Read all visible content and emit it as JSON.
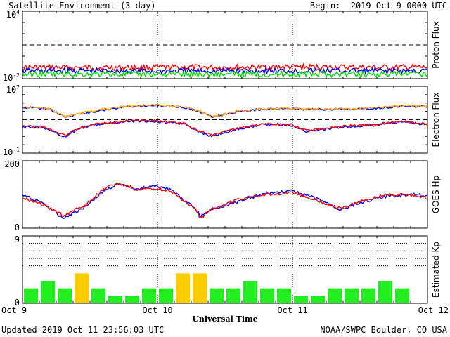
{
  "header": {
    "title": "Satellite Environment (3 day)",
    "begin": "Begin:  2019 Oct 9 0000 UTC"
  },
  "footer": {
    "updated": "Updated 2019 Oct 11 23:56:03 UTC",
    "credit": "NOAA/SWPC Boulder, CO USA"
  },
  "x_axis": {
    "label": "Universal Time",
    "ticks": [
      "Oct 9",
      "Oct 10",
      "Oct 11",
      "Oct 12"
    ]
  },
  "colors": {
    "red": "#ff0000",
    "blue": "#0000ff",
    "green": "#00dd00",
    "orange": "#ffa500",
    "kp_green": "#22ee22",
    "kp_yellow": "#ffcc00"
  },
  "chart_data": [
    {
      "type": "line",
      "title": "Proton Flux",
      "ylabel": "Proton Flux",
      "yscale": "log",
      "ylim": [
        0.01,
        10000
      ],
      "ytick_labels": [
        "10^4",
        "10^-2"
      ],
      "threshold": 10,
      "x_unit": "days since Oct 9 0000 UTC",
      "series": [
        {
          "color": "red",
          "x": [
            0,
            0.5,
            1,
            1.5,
            2,
            2.5,
            3
          ],
          "y": [
            0.1,
            0.095,
            0.1,
            0.1,
            0.11,
            0.1,
            0.1
          ]
        },
        {
          "color": "blue",
          "x": [
            0,
            0.5,
            1,
            1.5,
            2,
            2.5,
            3
          ],
          "y": [
            0.05,
            0.05,
            0.048,
            0.05,
            0.05,
            0.05,
            0.05
          ]
        },
        {
          "color": "green",
          "x": [
            0,
            0.5,
            1,
            1.5,
            2,
            2.5,
            3
          ],
          "y": [
            0.025,
            0.025,
            0.025,
            0.025,
            0.025,
            0.025,
            0.025
          ]
        }
      ]
    },
    {
      "type": "line",
      "title": "Electron Flux",
      "ylabel": "Electron Flux",
      "yscale": "log",
      "ylim": [
        0.1,
        10000000
      ],
      "ytick_labels": [
        "10^7",
        "10^-1"
      ],
      "threshold": 1000,
      "x_unit": "days since Oct 9 0000 UTC",
      "series": [
        {
          "color": "blue",
          "x": [
            0,
            0.2,
            0.32,
            0.4,
            0.6,
            0.8,
            1.0,
            1.2,
            1.35,
            1.4,
            1.6,
            1.8,
            2.0,
            2.2,
            2.4,
            2.6,
            2.8,
            3.0
          ],
          "y": [
            30000,
            20000,
            1800,
            4000,
            15000,
            40000,
            50000,
            30000,
            6000,
            2000,
            9000,
            20000,
            20000,
            17000,
            18000,
            23000,
            40000,
            40000
          ]
        },
        {
          "color": "orange",
          "x": [
            0,
            0.2,
            0.32,
            0.4,
            0.6,
            0.8,
            1.0,
            1.2,
            1.35,
            1.4,
            1.6,
            1.8,
            2.0,
            2.2,
            2.4,
            2.6,
            2.8,
            3.0
          ],
          "y": [
            35000,
            22000,
            2200,
            5000,
            18000,
            45000,
            55000,
            33000,
            7000,
            2200,
            10000,
            22000,
            22000,
            19000,
            20000,
            25000,
            45000,
            45000
          ]
        },
        {
          "color": "blue",
          "x": [
            0,
            0.15,
            0.32,
            0.36,
            0.5,
            0.8,
            1.0,
            1.2,
            1.3,
            1.4,
            1.6,
            1.8,
            2.0,
            2.1,
            2.4,
            2.6,
            2.8,
            3.0
          ],
          "y": [
            150,
            120,
            8,
            30,
            200,
            700,
            600,
            300,
            40,
            10,
            80,
            300,
            200,
            40,
            150,
            200,
            600,
            250
          ]
        },
        {
          "color": "red",
          "x": [
            0,
            0.15,
            0.32,
            0.36,
            0.5,
            0.8,
            1.0,
            1.2,
            1.3,
            1.4,
            1.6,
            1.8,
            2.0,
            2.1,
            2.4,
            2.6,
            2.8,
            3.0
          ],
          "y": [
            200,
            150,
            12,
            40,
            250,
            800,
            700,
            350,
            50,
            15,
            100,
            350,
            250,
            50,
            180,
            250,
            700,
            300
          ]
        }
      ]
    },
    {
      "type": "line",
      "title": "GOES Hp",
      "ylabel": "GOES Hp",
      "ylim": [
        0,
        200
      ],
      "ytick_labels": [
        "200",
        "0"
      ],
      "x_unit": "days since Oct 9 0000 UTC",
      "series": [
        {
          "color": "blue",
          "x": [
            0,
            0.15,
            0.3,
            0.45,
            0.6,
            0.7,
            0.85,
            1.0,
            1.1,
            1.2,
            1.28,
            1.32,
            1.4,
            1.6,
            1.8,
            2.0,
            2.2,
            2.35,
            2.5,
            2.7,
            2.9,
            3.0
          ],
          "y": [
            98,
            75,
            30,
            60,
            110,
            130,
            118,
            125,
            115,
            80,
            60,
            35,
            55,
            80,
            103,
            110,
            85,
            55,
            75,
            95,
            100,
            95
          ]
        },
        {
          "color": "red",
          "x": [
            0,
            0.15,
            0.3,
            0.45,
            0.6,
            0.7,
            0.85,
            1.0,
            1.1,
            1.2,
            1.28,
            1.32,
            1.4,
            1.6,
            1.8,
            2.0,
            2.2,
            2.35,
            2.5,
            2.7,
            2.9,
            3.0
          ],
          "y": [
            90,
            70,
            38,
            65,
            115,
            133,
            114,
            118,
            110,
            78,
            55,
            28,
            58,
            85,
            100,
            105,
            80,
            58,
            80,
            100,
            98,
            90
          ]
        }
      ]
    },
    {
      "type": "bar",
      "title": "Estimated Kp",
      "ylabel": "Estimated Kp",
      "ylim": [
        0,
        9
      ],
      "ytick_labels": [
        "9",
        "0"
      ],
      "kp_per_3h": [
        2,
        3,
        2,
        4,
        2,
        1,
        1,
        2,
        2,
        4,
        4,
        2,
        2,
        3,
        2,
        2,
        1,
        1,
        2,
        2,
        2,
        3,
        2,
        0
      ],
      "color_rule": "Kp 4 yellow, otherwise green"
    }
  ]
}
